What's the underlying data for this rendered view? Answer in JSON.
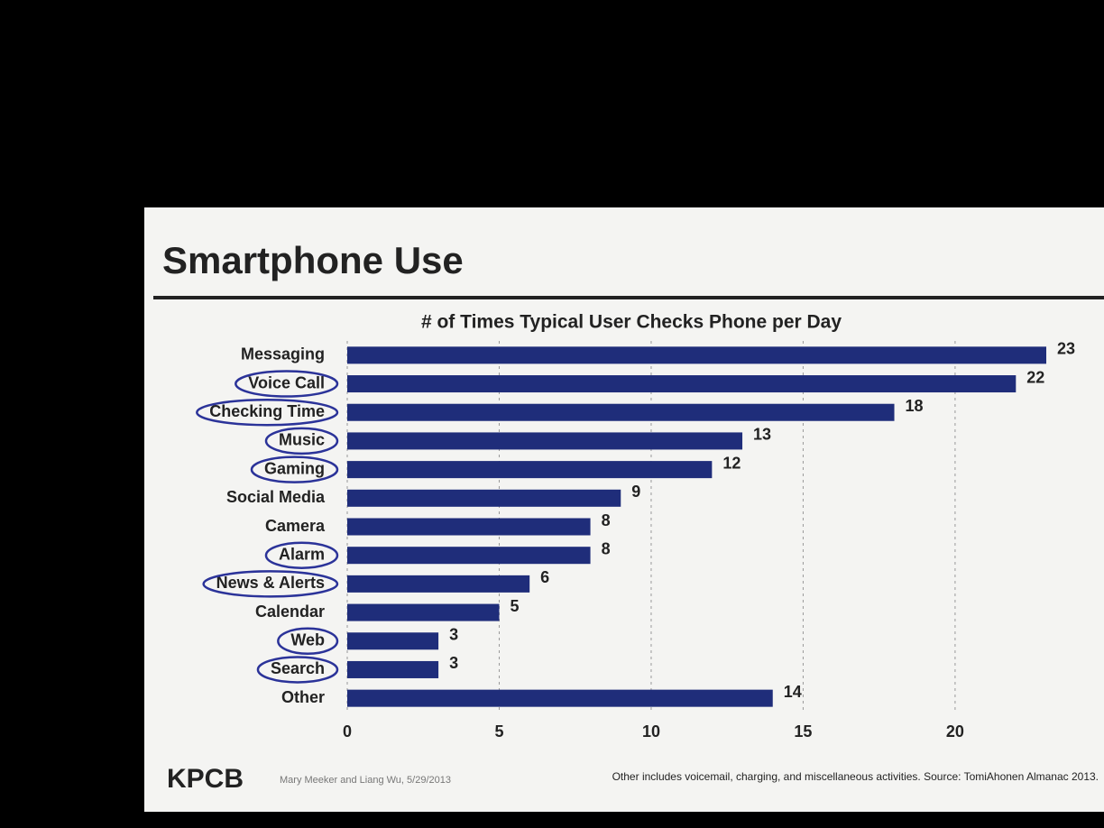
{
  "chart_data": {
    "type": "hbar",
    "title": "Smartphone Use",
    "subtitle": "# of Times Typical User Checks Phone per Day",
    "brand": "KPCB",
    "credit": "Mary Meeker and Liang Wu, 5/29/2013",
    "footnote": "Other includes voicemail, charging, and miscellaneous activities. Source: TomiAhonen Almanac 2013.",
    "categories": [
      "Messaging",
      "Voice Call",
      "Checking Time",
      "Music",
      "Gaming",
      "Social Media",
      "Camera",
      "Alarm",
      "News & Alerts",
      "Calendar",
      "Web",
      "Search",
      "Other"
    ],
    "values": [
      23,
      22,
      18,
      13,
      12,
      9,
      8,
      8,
      6,
      5,
      3,
      3,
      14
    ],
    "circled": [
      false,
      true,
      true,
      true,
      true,
      false,
      false,
      true,
      true,
      false,
      true,
      true,
      false
    ],
    "color": "#1f2d7a",
    "circle_color": "#2b3399",
    "xlim": [
      0,
      23
    ],
    "xticks": [
      0,
      5,
      10,
      15,
      20
    ],
    "grid": true
  }
}
